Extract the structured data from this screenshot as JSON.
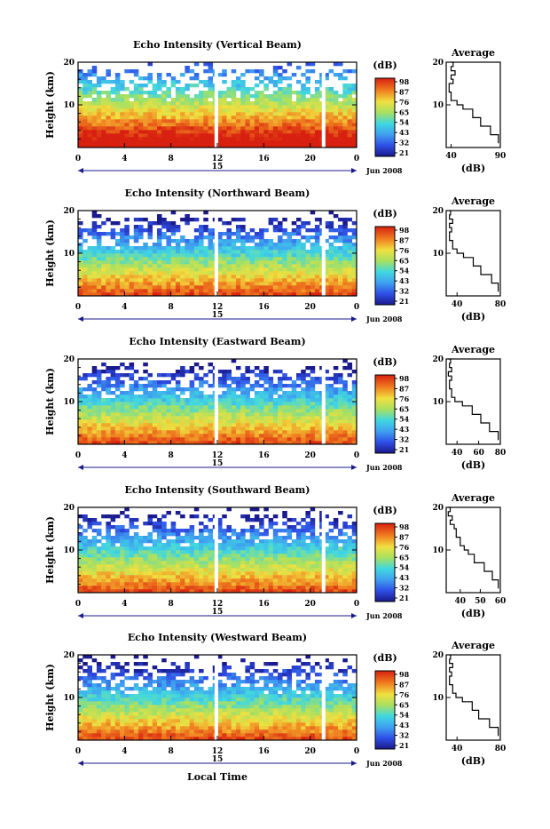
{
  "figure": {
    "x_label": "Local Time",
    "x_date_label": "15",
    "x_month_label": "Jun 2008",
    "colorbar_unit": "(dB)",
    "avg_title": "Average",
    "avg_unit": "(dB)",
    "y_label": "Height (km)"
  },
  "chart_data": [
    {
      "type": "heatmap",
      "title": "Echo Intensity (Vertical Beam)",
      "xlabel": "Local Time",
      "ylabel": "Height (km)",
      "x_ticks": [
        "0",
        "4",
        "8",
        "12",
        "16",
        "20",
        "0"
      ],
      "y_ticks": [
        "10",
        "20"
      ],
      "colorbar_ticks": [
        "98",
        "87",
        "76",
        "65",
        "54",
        "43",
        "32",
        "21"
      ],
      "average_profile": {
        "xlabel": "(dB)",
        "x_ticks": [
          "40",
          "90"
        ],
        "xlim": [
          35,
          90
        ],
        "height_km": [
          1,
          3,
          5,
          7,
          9,
          10,
          11,
          13,
          15,
          16,
          17,
          18,
          19,
          20
        ],
        "db": [
          88,
          80,
          70,
          62,
          52,
          46,
          40,
          38,
          42,
          40,
          44,
          40,
          42,
          40
        ]
      }
    },
    {
      "type": "heatmap",
      "title": "Echo Intensity (Northward Beam)",
      "xlabel": "Local Time",
      "ylabel": "Height (km)",
      "x_ticks": [
        "0",
        "4",
        "8",
        "12",
        "16",
        "20",
        "0"
      ],
      "y_ticks": [
        "10",
        "20"
      ],
      "colorbar_ticks": [
        "98",
        "87",
        "76",
        "65",
        "54",
        "43",
        "32",
        "21"
      ],
      "average_profile": {
        "xlabel": "(dB)",
        "x_ticks": [
          "40",
          "80"
        ],
        "xlim": [
          30,
          80
        ],
        "height_km": [
          1,
          3,
          5,
          7,
          9,
          10,
          11,
          13,
          15,
          16,
          17,
          18,
          19,
          20
        ],
        "db": [
          78,
          72,
          62,
          55,
          46,
          40,
          36,
          33,
          35,
          33,
          36,
          33,
          34,
          33
        ]
      }
    },
    {
      "type": "heatmap",
      "title": "Echo Intensity (Eastward Beam)",
      "xlabel": "Local Time",
      "ylabel": "Height (km)",
      "x_ticks": [
        "0",
        "4",
        "8",
        "12",
        "16",
        "20",
        "0"
      ],
      "y_ticks": [
        "10",
        "20"
      ],
      "colorbar_ticks": [
        "98",
        "87",
        "76",
        "65",
        "54",
        "43",
        "32",
        "21"
      ],
      "average_profile": {
        "xlabel": "(dB)",
        "x_ticks": [
          "40",
          "60",
          "80"
        ],
        "xlim": [
          30,
          80
        ],
        "height_km": [
          1,
          3,
          5,
          7,
          9,
          10,
          11,
          13,
          15,
          16,
          17,
          18,
          19,
          20
        ],
        "db": [
          78,
          70,
          62,
          54,
          45,
          38,
          35,
          33,
          35,
          32,
          35,
          33,
          34,
          32
        ]
      }
    },
    {
      "type": "heatmap",
      "title": "Echo Intensity (Southward Beam)",
      "xlabel": "Local Time",
      "ylabel": "Height (km)",
      "x_ticks": [
        "0",
        "4",
        "8",
        "12",
        "16",
        "20",
        "0"
      ],
      "y_ticks": [
        "10",
        "20"
      ],
      "colorbar_ticks": [
        "98",
        "87",
        "76",
        "65",
        "54",
        "43",
        "32",
        "21"
      ],
      "average_profile": {
        "xlabel": "(dB)",
        "x_ticks": [
          "40",
          "50",
          "60"
        ],
        "xlim": [
          33,
          60
        ],
        "height_km": [
          1,
          3,
          5,
          7,
          9,
          10,
          11,
          13,
          15,
          16,
          17,
          18,
          19,
          20
        ],
        "db": [
          59,
          56,
          52,
          47,
          44,
          42,
          40,
          38,
          37,
          35,
          36,
          34,
          35,
          34
        ]
      }
    },
    {
      "type": "heatmap",
      "title": "Echo Intensity (Westward Beam)",
      "xlabel": "Local Time",
      "ylabel": "Height (km)",
      "x_ticks": [
        "0",
        "4",
        "8",
        "12",
        "16",
        "20",
        "0"
      ],
      "y_ticks": [
        "10",
        "20"
      ],
      "colorbar_ticks": [
        "98",
        "87",
        "76",
        "65",
        "54",
        "43",
        "32",
        "21"
      ],
      "average_profile": {
        "xlabel": "(dB)",
        "x_ticks": [
          "40",
          "80"
        ],
        "xlim": [
          30,
          80
        ],
        "height_km": [
          1,
          3,
          5,
          7,
          9,
          10,
          11,
          13,
          15,
          16,
          17,
          18,
          19,
          20
        ],
        "db": [
          78,
          70,
          60,
          54,
          45,
          39,
          36,
          33,
          35,
          33,
          36,
          33,
          34,
          33
        ]
      }
    }
  ]
}
